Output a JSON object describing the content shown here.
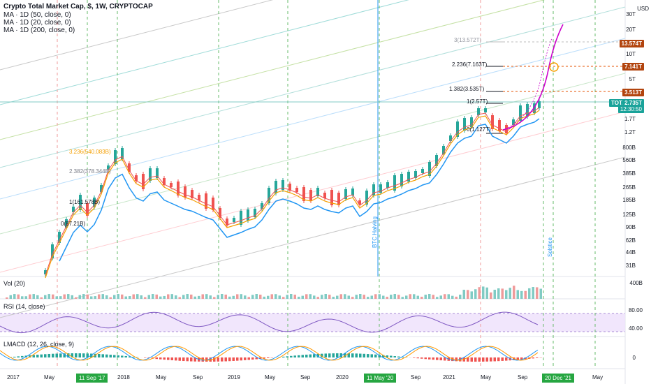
{
  "legend": {
    "title": "Crypto Total Market Cap, $, 1W, CRYPTOCAP",
    "ma1": "MA · 1D (50, close, 0)",
    "ma2": "MA · 1D (20, close, 0)",
    "ma3": "MA · 1D (200, close, 0)"
  },
  "panes": {
    "vol": "Vol (20)",
    "rsi": "RSI (14, close)",
    "lmacd": "LMACD (12, 26, close, 9)"
  },
  "price_axis": {
    "unit": "USD",
    "labels": [
      "30T",
      "20T",
      "10T",
      "5T",
      "1.7T",
      "1.2T",
      "800B",
      "560B",
      "385B",
      "265B",
      "185B",
      "125B",
      "90B",
      "62B",
      "44B",
      "31B"
    ],
    "vol_label": "400B",
    "rsi_labels": [
      "80.00",
      "40.00"
    ],
    "macd_label": "0"
  },
  "time_axis": {
    "labels": [
      "2017",
      "May",
      "Sep",
      "2018",
      "May",
      "Sep",
      "2019",
      "May",
      "Sep",
      "2020",
      "May",
      "Sep",
      "2021",
      "May",
      "Sep",
      "May"
    ],
    "highlighted": [
      "11 Sep '17",
      "11 May '20",
      "20 Dec '21"
    ]
  },
  "price_tags": {
    "t13": "13.574T",
    "t7": "7.141T",
    "t3": "3.513T",
    "total_name": "TOTAL",
    "total_value": "2.735T",
    "total_time": "12:30:50"
  },
  "fib_levels": {
    "left": [
      "3.236(540.083B)",
      "2.382(378.344B)",
      "1(161.578B)",
      "0(87.21B)"
    ],
    "right": [
      "3(13.572T)",
      "2.236(7.163T)",
      "1.382(3.535T)",
      "1(2.57T)",
      "0(1.127T)"
    ]
  },
  "annotations": {
    "halving": "BTC Halving",
    "solstice": "Solstice"
  },
  "colors": {
    "candle_up": "#26a69a",
    "candle_down": "#ef5350",
    "ma50": "#f59f00",
    "ma20": "#ef5350",
    "ma200": "#2196f3",
    "fib_orange": "#e65100",
    "projection": "#cc00cc",
    "date_tag": "#26a641"
  }
}
